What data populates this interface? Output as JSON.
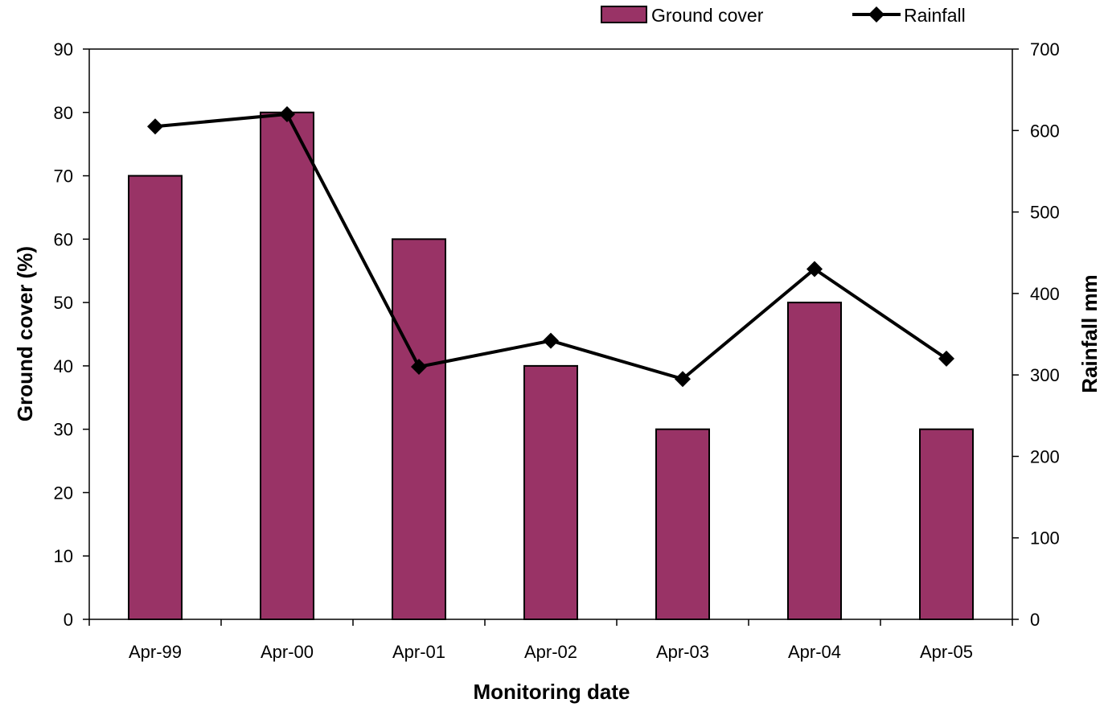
{
  "chart_data": {
    "type": "bar",
    "categories": [
      "Apr-99",
      "Apr-00",
      "Apr-01",
      "Apr-02",
      "Apr-03",
      "Apr-04",
      "Apr-05"
    ],
    "series": [
      {
        "name": "Ground cover",
        "type": "bar",
        "axis": "left",
        "color": "#993366",
        "values": [
          70,
          80,
          60,
          40,
          30,
          50,
          30
        ]
      },
      {
        "name": "Rainfall",
        "type": "line",
        "axis": "right",
        "color": "#000000",
        "marker": "diamond",
        "values": [
          605,
          620,
          310,
          342,
          295,
          430,
          320
        ]
      }
    ],
    "title": "",
    "xlabel": "Monitoring date",
    "ylabel": "Ground cover (%)",
    "y2label": "Rainfall mm",
    "ylim": [
      0,
      90
    ],
    "y2lim": [
      0,
      700
    ],
    "yticks": [
      0,
      10,
      20,
      30,
      40,
      50,
      60,
      70,
      80,
      90
    ],
    "y2ticks": [
      0,
      100,
      200,
      300,
      400,
      500,
      600,
      700
    ],
    "grid": false,
    "legend_position": "top-right"
  }
}
